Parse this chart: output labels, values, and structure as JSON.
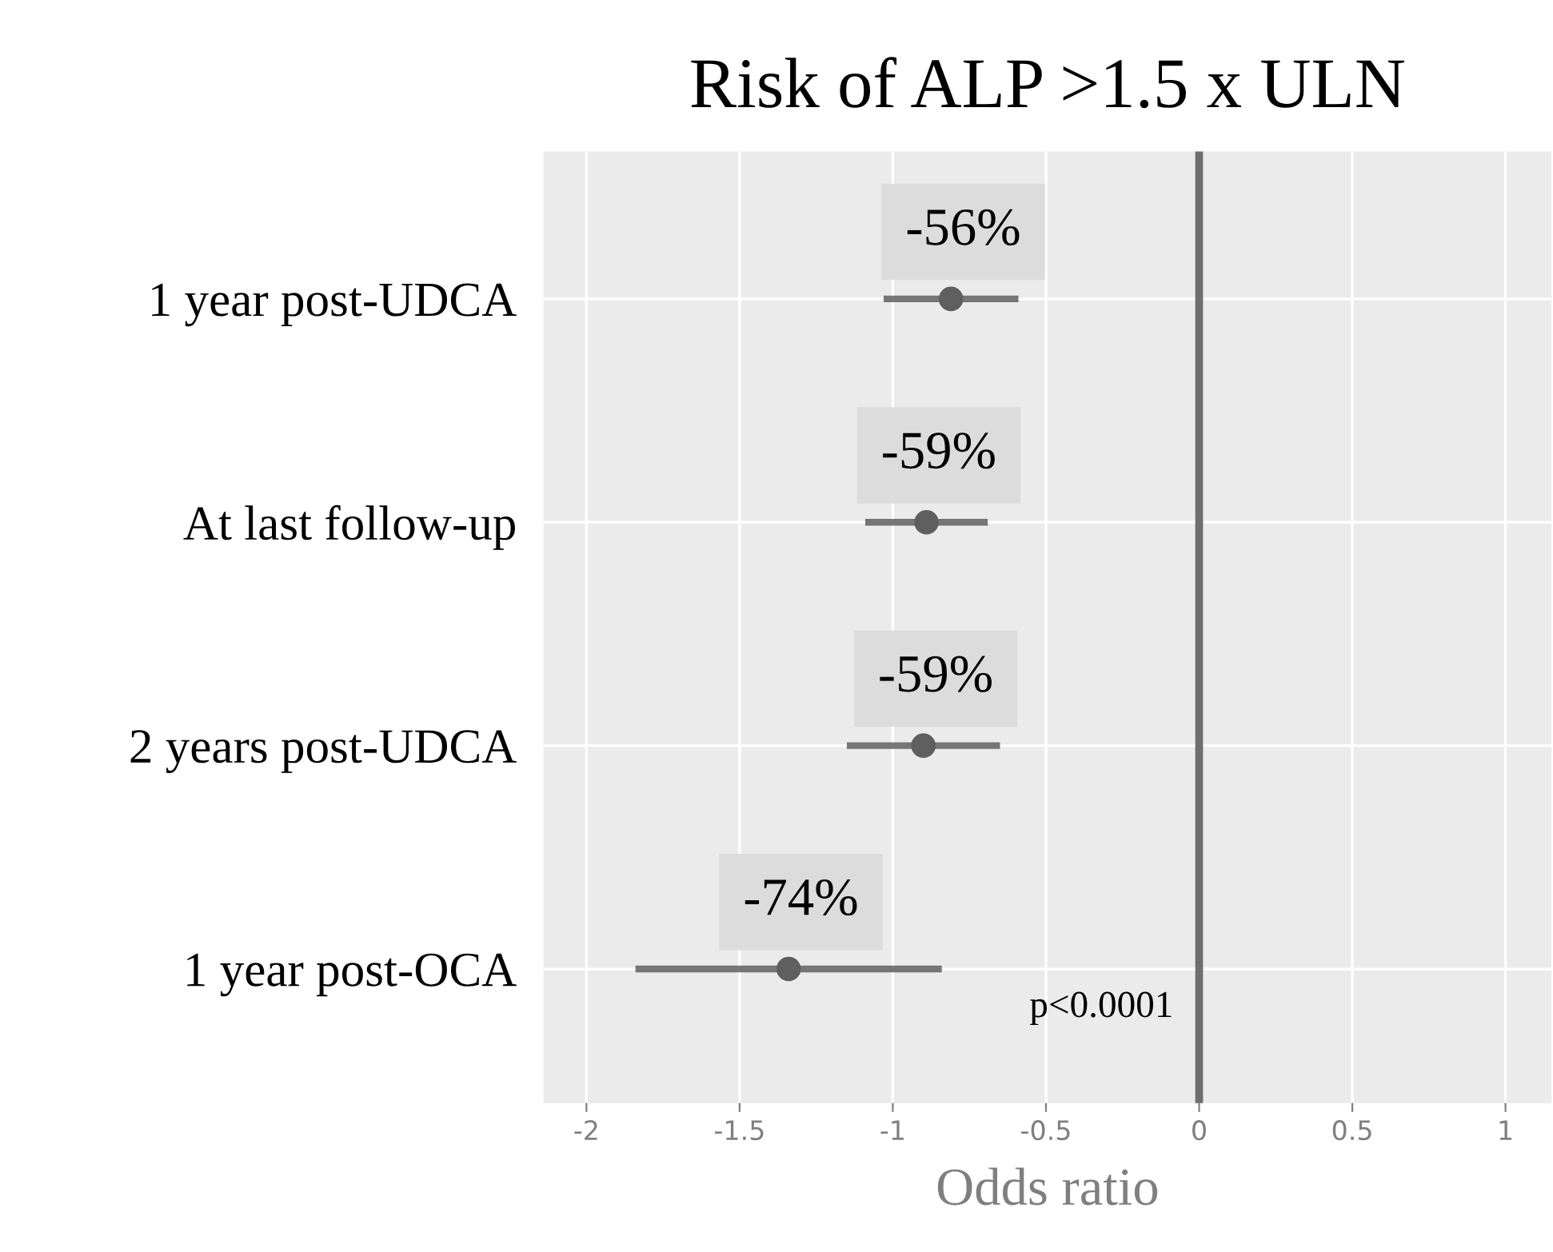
{
  "chart_data": {
    "type": "scatter",
    "title": "Risk of ALP >1.5 x ULN",
    "xlabel": "Odds ratio",
    "categories": [
      "1 year post-UDCA",
      "At last follow-up",
      "2 years post-UDCA",
      "1 year post-OCA"
    ],
    "orientation": "horizontal",
    "series": [
      {
        "color": "#5f5f5f",
        "values": [
          -0.81,
          -0.89,
          -0.9,
          -1.34
        ],
        "errors": [
          0.22,
          0.2,
          0.25,
          0.5
        ]
      }
    ],
    "xlim": [
      -2.14,
      1.15
    ],
    "xticks": [
      -2,
      -1.5,
      -1,
      -0.5,
      0,
      0.5,
      1
    ],
    "ref_lines": [
      {
        "axis": "x",
        "value": 0,
        "color": "#6e6e6e"
      }
    ],
    "annotations": [
      {
        "text": "-56%",
        "x": -0.81,
        "y": "1 year post-UDCA"
      },
      {
        "text": "-59%",
        "x": -0.89,
        "y": "At last follow-up"
      },
      {
        "text": "-59%",
        "x": -0.9,
        "y": "2 years post-UDCA"
      },
      {
        "text": "-74%",
        "x": -1.34,
        "y": "1 year post-OCA"
      },
      "p<0.0001"
    ],
    "grid": true,
    "marker": "circle",
    "legend": false
  }
}
